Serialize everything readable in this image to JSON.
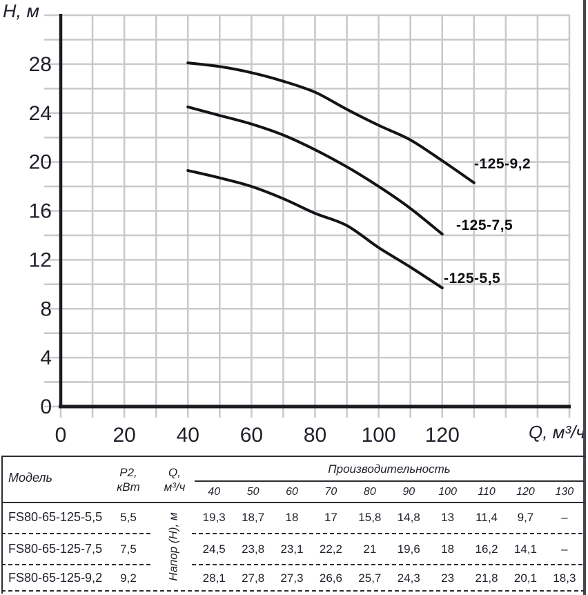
{
  "chart_data": {
    "type": "line",
    "title": "",
    "ylabel": "Н, м",
    "xlabel": "Q, м³/ч",
    "x": [
      40,
      50,
      60,
      70,
      80,
      90,
      100,
      110,
      120,
      130
    ],
    "series": [
      {
        "name": "-125-5,5",
        "values": [
          19.3,
          18.7,
          18,
          17,
          15.8,
          14.8,
          13,
          11.4,
          9.7,
          null
        ]
      },
      {
        "name": "-125-7,5",
        "values": [
          24.5,
          23.8,
          23.1,
          22.2,
          21,
          19.6,
          18,
          16.2,
          14.1,
          null
        ]
      },
      {
        "name": "-125-9,2",
        "values": [
          28.1,
          27.8,
          27.3,
          26.6,
          25.7,
          24.3,
          23,
          21.8,
          20.1,
          18.3
        ]
      }
    ],
    "xlim": [
      0,
      160
    ],
    "ylim": [
      0,
      32
    ],
    "x_ticks": [
      0,
      20,
      40,
      60,
      80,
      100,
      120
    ],
    "y_ticks": [
      0,
      4,
      8,
      12,
      16,
      20,
      24,
      28
    ],
    "grid": true,
    "grid_step_x": 10,
    "grid_step_y": 2,
    "legend": "inline-labels-right-of-curves",
    "curve_color": "#141418",
    "grid_color": "#c9cacb"
  },
  "table": {
    "col_model": "Модель",
    "col_p2_line1": "Р2,",
    "col_p2_line2": "кВт",
    "col_q_line1": "Q,",
    "col_q_line2": "м³/ч",
    "group_header": "Производительность",
    "flow_values": [
      "40",
      "50",
      "60",
      "70",
      "80",
      "90",
      "100",
      "110",
      "120",
      "130"
    ],
    "rotated_label": "Напор (Н), м",
    "rows": [
      {
        "model": "FS80-65-125-5,5",
        "p2": "5,5",
        "values": [
          "19,3",
          "18,7",
          "18",
          "17",
          "15,8",
          "14,8",
          "13",
          "11,4",
          "9,7",
          "–"
        ]
      },
      {
        "model": "FS80-65-125-7,5",
        "p2": "7,5",
        "values": [
          "24,5",
          "23,8",
          "23,1",
          "22,2",
          "21",
          "19,6",
          "18",
          "16,2",
          "14,1",
          "–"
        ]
      },
      {
        "model": "FS80-65-125-9,2",
        "p2": "9,2",
        "values": [
          "28,1",
          "27,8",
          "27,3",
          "26,6",
          "25,7",
          "24,3",
          "23",
          "21,8",
          "20,1",
          "18,3"
        ]
      }
    ]
  }
}
